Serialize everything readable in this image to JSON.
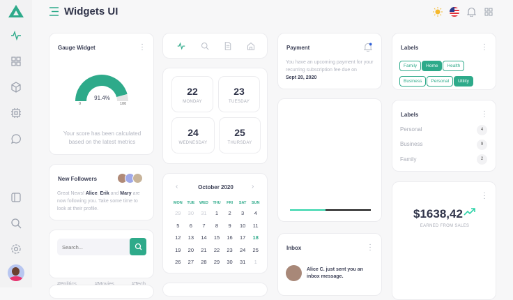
{
  "header": {
    "title": "Widgets UI"
  },
  "sidebar": {
    "items": [
      "activity",
      "grid",
      "box",
      "cpu",
      "chat",
      "layout",
      "search",
      "settings"
    ]
  },
  "gauge": {
    "title": "Gauge Widget",
    "value": 91.4,
    "value_label": "91.4%",
    "min": "0",
    "max": "100",
    "caption": "Your score has been calculated based on the latest metrics",
    "colors": {
      "fill": "#2eaa8a",
      "rest": "#e4e4e4"
    }
  },
  "followers": {
    "title": "New Followers",
    "prefix": "Great News! ",
    "n1": "Alice",
    "sep1": ", ",
    "n2": "Erik",
    "sep2": " and ",
    "n3": "Mary",
    "suffix": " are now following you. Take some time to look at their profile."
  },
  "search": {
    "placeholder": "Search...",
    "tags": [
      "#Politics",
      "#Movies",
      "#Tech"
    ]
  },
  "tabs": [
    "activity",
    "search",
    "file",
    "home"
  ],
  "days": [
    {
      "num": "22",
      "name": "MONDAY"
    },
    {
      "num": "23",
      "name": "TUESDAY"
    },
    {
      "num": "24",
      "name": "WEDNESDAY"
    },
    {
      "num": "25",
      "name": "THURSDAY"
    }
  ],
  "calendar": {
    "title": "October 2020",
    "weekdays": [
      "MON",
      "TUE",
      "WED",
      "THU",
      "FRI",
      "SAT",
      "SUN"
    ],
    "days": [
      "29",
      "30",
      "31",
      "1",
      "2",
      "3",
      "4",
      "5",
      "6",
      "7",
      "8",
      "9",
      "10",
      "11",
      "12",
      "13",
      "14",
      "15",
      "16",
      "17",
      "18",
      "19",
      "20",
      "21",
      "22",
      "23",
      "24",
      "25",
      "26",
      "27",
      "28",
      "29",
      "30",
      "31",
      "1"
    ],
    "today": "18"
  },
  "payment": {
    "title": "Payment",
    "text": "You have an upcoming payment for your recurring subscription fee due on",
    "date": "Sept 20, 2020"
  },
  "progress": {
    "value": 0.44,
    "colors": {
      "fill": "#2ed3a8",
      "track": "#111111"
    }
  },
  "inbox": {
    "title": "Inbox",
    "message": "Alice C. just sent you an inbox message."
  },
  "labels": {
    "title": "Labels",
    "chips": [
      {
        "label": "Family",
        "active": false
      },
      {
        "label": "Home",
        "active": true
      },
      {
        "label": "Health",
        "active": false
      },
      {
        "label": "Business",
        "active": false
      },
      {
        "label": "Personal",
        "active": false
      },
      {
        "label": "Utility",
        "active": true
      }
    ]
  },
  "label_counts": {
    "title": "Labels",
    "items": [
      {
        "label": "Personal",
        "count": "4"
      },
      {
        "label": "Business",
        "count": "9"
      },
      {
        "label": "Family",
        "count": "2"
      }
    ]
  },
  "sales": {
    "amount": "$1638,42",
    "caption": "EARNED FROM SALES"
  },
  "accent": "#2eaa8a"
}
